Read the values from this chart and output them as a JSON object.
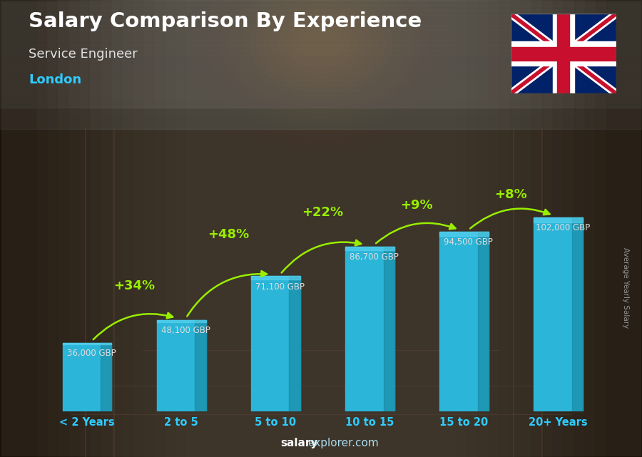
{
  "title": "Salary Comparison By Experience",
  "subtitle": "Service Engineer",
  "location": "London",
  "categories": [
    "< 2 Years",
    "2 to 5",
    "5 to 10",
    "10 to 15",
    "15 to 20",
    "20+ Years"
  ],
  "values": [
    36000,
    48100,
    71100,
    86700,
    94500,
    102000
  ],
  "labels": [
    "36,000 GBP",
    "48,100 GBP",
    "71,100 GBP",
    "86,700 GBP",
    "94,500 GBP",
    "102,000 GBP"
  ],
  "pct_changes": [
    "+34%",
    "+48%",
    "+22%",
    "+9%",
    "+8%"
  ],
  "bar_color": "#2bb5d8",
  "bar_color_dark": "#1a8fa8",
  "bar_color_top": "#5dd5f0",
  "pct_color": "#99ee00",
  "label_color": "#dddddd",
  "bg_color": "#4a3f35",
  "title_color": "#ffffff",
  "subtitle_color": "#e0e0e0",
  "location_color": "#2eccff",
  "ylabel_color": "#aaaaaa",
  "xtick_color": "#2eccff",
  "ylim": [
    0,
    125000
  ],
  "footer_salary_color": "#ffffff",
  "footer_explorer_color": "#aaddff",
  "ylabel": "Average Yearly Salary"
}
